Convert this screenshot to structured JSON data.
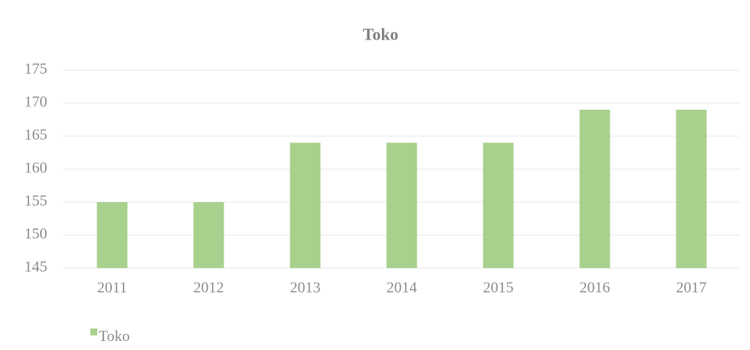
{
  "chart_data": {
    "type": "bar",
    "title": "Toko",
    "categories": [
      "2011",
      "2012",
      "2013",
      "2014",
      "2015",
      "2016",
      "2017"
    ],
    "series": [
      {
        "name": "Toko",
        "color": "#a9d18e",
        "values": [
          155,
          155,
          164,
          164,
          164,
          169,
          169
        ]
      }
    ],
    "ylim": [
      145,
      175
    ],
    "yticks": [
      145,
      150,
      155,
      160,
      165,
      170,
      175
    ],
    "grid": true,
    "legend": "bottom-left"
  }
}
